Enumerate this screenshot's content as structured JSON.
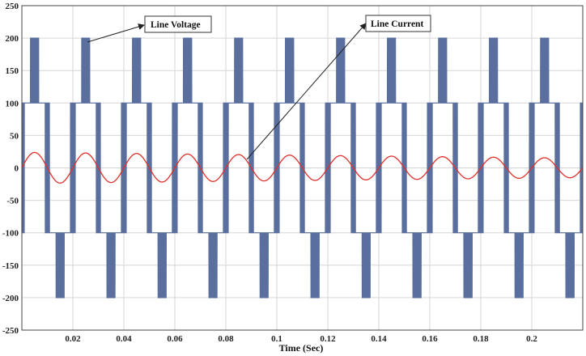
{
  "chart_data": {
    "type": "line",
    "title": "",
    "xlabel": "Time (Sec)",
    "ylabel": "",
    "xlim": [
      0.0,
      0.22
    ],
    "ylim": [
      -250,
      250
    ],
    "x_ticks": [
      0.02,
      0.04,
      0.06,
      0.08,
      0.1,
      0.12,
      0.14,
      0.16,
      0.18,
      0.2
    ],
    "x_tick_labels": [
      "0.02",
      "0.04",
      "0.06",
      "0.08",
      "0.1",
      "0.12",
      "0.14",
      "0.16",
      "0.18",
      "0.2"
    ],
    "y_ticks": [
      250,
      200,
      150,
      100,
      50,
      0,
      -50,
      -100,
      -150,
      -200,
      -250
    ],
    "y_tick_labels": [
      "250",
      "200",
      "150",
      "100",
      "50",
      "0",
      "-50",
      "-100",
      "-150",
      "-200",
      "-250"
    ],
    "grid": true,
    "series": [
      {
        "name": "Line Voltage",
        "kind": "multilevel-pwm",
        "fundamental_hz": 50,
        "levels": [
          -200,
          -100,
          0,
          100,
          200
        ],
        "color": "#5a6f9e"
      },
      {
        "name": "Line Current",
        "kind": "sine",
        "frequency_hz": 50,
        "amplitude_start": 24,
        "amplitude_end": 15,
        "color": "#e0302a"
      }
    ],
    "annotations": [
      {
        "text": "Line Voltage",
        "points_to": "Line Voltage"
      },
      {
        "text": "Line Current",
        "points_to": "Line Current"
      }
    ]
  }
}
